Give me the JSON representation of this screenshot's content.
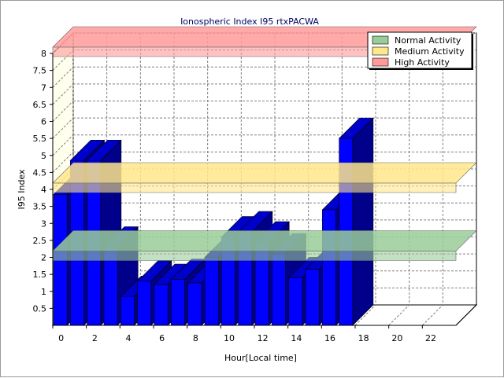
{
  "chart_data": {
    "type": "bar",
    "title": "Ionospheric Index I95 rtxPACWA",
    "xlabel": "Hour[Local time]",
    "ylabel": "I95 Index",
    "x": [
      0,
      1,
      2,
      3,
      4,
      5,
      6,
      7,
      8,
      9,
      10,
      11,
      12,
      13,
      14,
      15,
      16,
      17
    ],
    "values": [
      3.85,
      4.85,
      4.85,
      2.3,
      0.85,
      1.3,
      1.2,
      1.35,
      1.25,
      2.0,
      2.6,
      2.75,
      2.45,
      2.1,
      1.4,
      1.65,
      3.4,
      5.5
    ],
    "xlim": [
      0,
      24
    ],
    "ylim": [
      0,
      8
    ],
    "x_ticks": [
      "0",
      "2",
      "4",
      "6",
      "8",
      "10",
      "12",
      "14",
      "16",
      "18",
      "20",
      "22"
    ],
    "y_ticks": [
      "0.5",
      "1",
      "1.5",
      "2",
      "2.5",
      "3",
      "3.5",
      "4",
      "4.5",
      "5",
      "5.5",
      "6",
      "6.5",
      "7",
      "7.5",
      "8"
    ],
    "bar_color": "#0000ff",
    "grid": true,
    "bands": [
      {
        "name": "Normal Activity",
        "value": 2.0,
        "color": "#99cc99"
      },
      {
        "name": "Medium Activity",
        "value": 4.0,
        "color": "#ffe88a"
      },
      {
        "name": "High Activity",
        "value": 8.0,
        "color": "#ff9a9a"
      }
    ],
    "legend_position": "top-right"
  }
}
